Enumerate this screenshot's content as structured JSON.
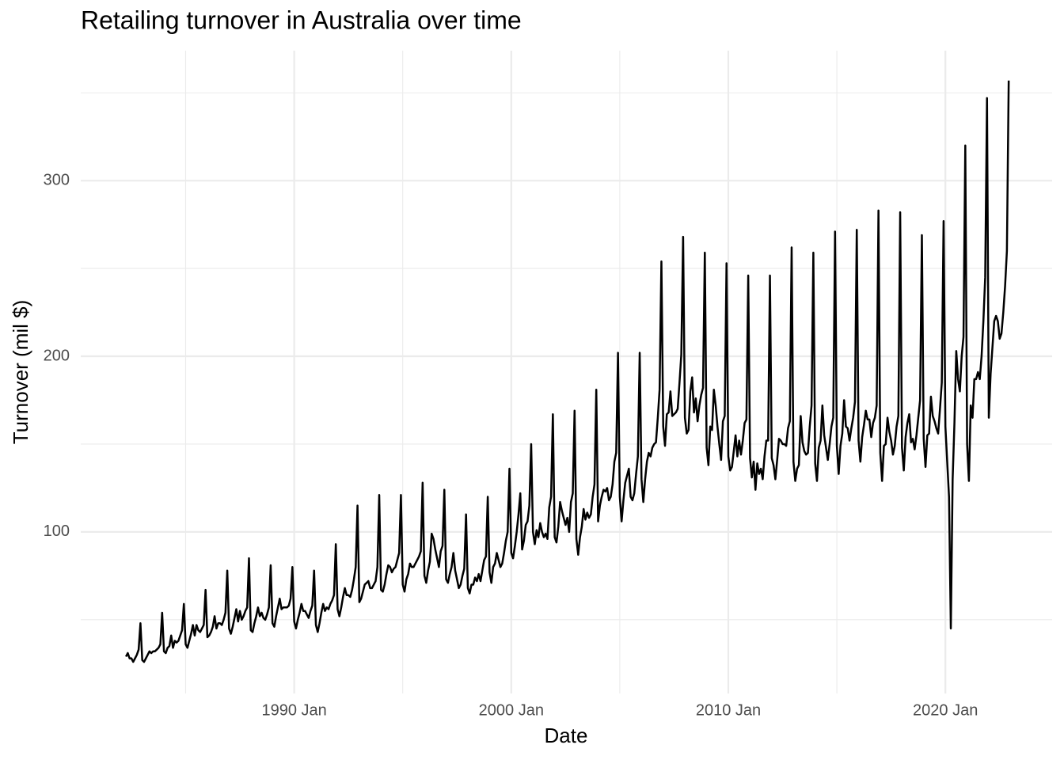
{
  "chart_data": {
    "type": "line",
    "title": "Retailing turnover in Australia over time",
    "x_label": "Date",
    "y_label": "Turnover (mil $)",
    "color": "#000000",
    "grid": true,
    "xlim": [
      "1980 Mar",
      "2024 Dec"
    ],
    "xticks": [
      "1990 Jan",
      "2000 Jan",
      "2010 Jan",
      "2020 Jan"
    ],
    "ylim": [
      8,
      374
    ],
    "yticks": [
      100,
      200,
      300
    ],
    "x": [
      "1982 Apr",
      "1982 May",
      "1982 Jun",
      "1982 Jul",
      "1982 Aug",
      "1982 Sep",
      "1982 Oct",
      "1982 Nov",
      "1982 Dec",
      "1983 Jan",
      "1983 Feb",
      "1983 Mar",
      "1983 Apr",
      "1983 May",
      "1983 Jun",
      "1983 Jul",
      "1983 Aug",
      "1983 Sep",
      "1983 Oct",
      "1983 Nov",
      "1983 Dec",
      "1984 Jan",
      "1984 Feb",
      "1984 Mar",
      "1984 Apr",
      "1984 May",
      "1984 Jun",
      "1984 Jul",
      "1984 Aug",
      "1984 Sep",
      "1984 Oct",
      "1984 Nov",
      "1984 Dec",
      "1985 Jan",
      "1985 Feb",
      "1985 Mar",
      "1985 Apr",
      "1985 May",
      "1985 Jun",
      "1985 Jul",
      "1985 Aug",
      "1985 Sep",
      "1985 Oct",
      "1985 Nov",
      "1985 Dec",
      "1986 Jan",
      "1986 Feb",
      "1986 Mar",
      "1986 Apr",
      "1986 May",
      "1986 Jun",
      "1986 Jul",
      "1986 Aug",
      "1986 Sep",
      "1986 Oct",
      "1986 Nov",
      "1986 Dec",
      "1987 Jan",
      "1987 Feb",
      "1987 Mar",
      "1987 Apr",
      "1987 May",
      "1987 Jun",
      "1987 Jul",
      "1987 Aug",
      "1987 Sep",
      "1987 Oct",
      "1987 Nov",
      "1987 Dec",
      "1988 Jan",
      "1988 Feb",
      "1988 Mar",
      "1988 Apr",
      "1988 May",
      "1988 Jun",
      "1988 Jul",
      "1988 Aug",
      "1988 Sep",
      "1988 Oct",
      "1988 Nov",
      "1988 Dec",
      "1989 Jan",
      "1989 Feb",
      "1989 Mar",
      "1989 Apr",
      "1989 May",
      "1989 Jun",
      "1989 Jul",
      "1989 Aug",
      "1989 Sep",
      "1989 Oct",
      "1989 Nov",
      "1989 Dec",
      "1990 Jan",
      "1990 Feb",
      "1990 Mar",
      "1990 Apr",
      "1990 May",
      "1990 Jun",
      "1990 Jul",
      "1990 Aug",
      "1990 Sep",
      "1990 Oct",
      "1990 Nov",
      "1990 Dec",
      "1991 Jan",
      "1991 Feb",
      "1991 Mar",
      "1991 Apr",
      "1991 May",
      "1991 Jun",
      "1991 Jul",
      "1991 Aug",
      "1991 Sep",
      "1991 Oct",
      "1991 Nov",
      "1991 Dec",
      "1992 Jan",
      "1992 Feb",
      "1992 Mar",
      "1992 Apr",
      "1992 May",
      "1992 Jun",
      "1992 Jul",
      "1992 Aug",
      "1992 Sep",
      "1992 Oct",
      "1992 Nov",
      "1992 Dec",
      "1993 Jan",
      "1993 Feb",
      "1993 Mar",
      "1993 Apr",
      "1993 May",
      "1993 Jun",
      "1993 Jul",
      "1993 Aug",
      "1993 Sep",
      "1993 Oct",
      "1993 Nov",
      "1993 Dec",
      "1994 Jan",
      "1994 Feb",
      "1994 Mar",
      "1994 Apr",
      "1994 May",
      "1994 Jun",
      "1994 Jul",
      "1994 Aug",
      "1994 Sep",
      "1994 Oct",
      "1994 Nov",
      "1994 Dec",
      "1995 Jan",
      "1995 Feb",
      "1995 Mar",
      "1995 Apr",
      "1995 May",
      "1995 Jun",
      "1995 Jul",
      "1995 Aug",
      "1995 Sep",
      "1995 Oct",
      "1995 Nov",
      "1995 Dec",
      "1996 Jan",
      "1996 Feb",
      "1996 Mar",
      "1996 Apr",
      "1996 May",
      "1996 Jun",
      "1996 Jul",
      "1996 Aug",
      "1996 Sep",
      "1996 Oct",
      "1996 Nov",
      "1996 Dec",
      "1997 Jan",
      "1997 Feb",
      "1997 Mar",
      "1997 Apr",
      "1997 May",
      "1997 Jun",
      "1997 Jul",
      "1997 Aug",
      "1997 Sep",
      "1997 Oct",
      "1997 Nov",
      "1997 Dec",
      "1998 Jan",
      "1998 Feb",
      "1998 Mar",
      "1998 Apr",
      "1998 May",
      "1998 Jun",
      "1998 Jul",
      "1998 Aug",
      "1998 Sep",
      "1998 Oct",
      "1998 Nov",
      "1998 Dec",
      "1999 Jan",
      "1999 Feb",
      "1999 Mar",
      "1999 Apr",
      "1999 May",
      "1999 Jun",
      "1999 Jul",
      "1999 Aug",
      "1999 Sep",
      "1999 Oct",
      "1999 Nov",
      "1999 Dec",
      "2000 Jan",
      "2000 Feb",
      "2000 Mar",
      "2000 Apr",
      "2000 May",
      "2000 Jun",
      "2000 Jul",
      "2000 Aug",
      "2000 Sep",
      "2000 Oct",
      "2000 Nov",
      "2000 Dec",
      "2001 Jan",
      "2001 Feb",
      "2001 Mar",
      "2001 Apr",
      "2001 May",
      "2001 Jun",
      "2001 Jul",
      "2001 Aug",
      "2001 Sep",
      "2001 Oct",
      "2001 Nov",
      "2001 Dec",
      "2002 Jan",
      "2002 Feb",
      "2002 Mar",
      "2002 Apr",
      "2002 May",
      "2002 Jun",
      "2002 Jul",
      "2002 Aug",
      "2002 Sep",
      "2002 Oct",
      "2002 Nov",
      "2002 Dec",
      "2003 Jan",
      "2003 Feb",
      "2003 Mar",
      "2003 Apr",
      "2003 May",
      "2003 Jun",
      "2003 Jul",
      "2003 Aug",
      "2003 Sep",
      "2003 Oct",
      "2003 Nov",
      "2003 Dec",
      "2004 Jan",
      "2004 Feb",
      "2004 Mar",
      "2004 Apr",
      "2004 May",
      "2004 Jun",
      "2004 Jul",
      "2004 Aug",
      "2004 Sep",
      "2004 Oct",
      "2004 Nov",
      "2004 Dec",
      "2005 Jan",
      "2005 Feb",
      "2005 Mar",
      "2005 Apr",
      "2005 May",
      "2005 Jun",
      "2005 Jul",
      "2005 Aug",
      "2005 Sep",
      "2005 Oct",
      "2005 Nov",
      "2005 Dec",
      "2006 Jan",
      "2006 Feb",
      "2006 Mar",
      "2006 Apr",
      "2006 May",
      "2006 Jun",
      "2006 Jul",
      "2006 Aug",
      "2006 Sep",
      "2006 Oct",
      "2006 Nov",
      "2006 Dec",
      "2007 Jan",
      "2007 Feb",
      "2007 Mar",
      "2007 Apr",
      "2007 May",
      "2007 Jun",
      "2007 Jul",
      "2007 Aug",
      "2007 Sep",
      "2007 Oct",
      "2007 Nov",
      "2007 Dec",
      "2008 Jan",
      "2008 Feb",
      "2008 Mar",
      "2008 Apr",
      "2008 May",
      "2008 Jun",
      "2008 Jul",
      "2008 Aug",
      "2008 Sep",
      "2008 Oct",
      "2008 Nov",
      "2008 Dec",
      "2009 Jan",
      "2009 Feb",
      "2009 Mar",
      "2009 Apr",
      "2009 May",
      "2009 Jun",
      "2009 Jul",
      "2009 Aug",
      "2009 Sep",
      "2009 Oct",
      "2009 Nov",
      "2009 Dec",
      "2010 Jan",
      "2010 Feb",
      "2010 Mar",
      "2010 Apr",
      "2010 May",
      "2010 Jun",
      "2010 Jul",
      "2010 Aug",
      "2010 Sep",
      "2010 Oct",
      "2010 Nov",
      "2010 Dec",
      "2011 Jan",
      "2011 Feb",
      "2011 Mar",
      "2011 Apr",
      "2011 May",
      "2011 Jun",
      "2011 Jul",
      "2011 Aug",
      "2011 Sep",
      "2011 Oct",
      "2011 Nov",
      "2011 Dec",
      "2012 Jan",
      "2012 Feb",
      "2012 Mar",
      "2012 Apr",
      "2012 May",
      "2012 Jun",
      "2012 Jul",
      "2012 Aug",
      "2012 Sep",
      "2012 Oct",
      "2012 Nov",
      "2012 Dec",
      "2013 Jan",
      "2013 Feb",
      "2013 Mar",
      "2013 Apr",
      "2013 May",
      "2013 Jun",
      "2013 Jul",
      "2013 Aug",
      "2013 Sep",
      "2013 Oct",
      "2013 Nov",
      "2013 Dec",
      "2014 Jan",
      "2014 Feb",
      "2014 Mar",
      "2014 Apr",
      "2014 May",
      "2014 Jun",
      "2014 Jul",
      "2014 Aug",
      "2014 Sep",
      "2014 Oct",
      "2014 Nov",
      "2014 Dec",
      "2015 Jan",
      "2015 Feb",
      "2015 Mar",
      "2015 Apr",
      "2015 May",
      "2015 Jun",
      "2015 Jul",
      "2015 Aug",
      "2015 Sep",
      "2015 Oct",
      "2015 Nov",
      "2015 Dec",
      "2016 Jan",
      "2016 Feb",
      "2016 Mar",
      "2016 Apr",
      "2016 May",
      "2016 Jun",
      "2016 Jul",
      "2016 Aug",
      "2016 Sep",
      "2016 Oct",
      "2016 Nov",
      "2016 Dec",
      "2017 Jan",
      "2017 Feb",
      "2017 Mar",
      "2017 Apr",
      "2017 May",
      "2017 Jun",
      "2017 Jul",
      "2017 Aug",
      "2017 Sep",
      "2017 Oct",
      "2017 Nov",
      "2017 Dec",
      "2018 Jan",
      "2018 Feb",
      "2018 Mar",
      "2018 Apr",
      "2018 May",
      "2018 Jun",
      "2018 Jul",
      "2018 Aug",
      "2018 Sep",
      "2018 Oct",
      "2018 Nov",
      "2018 Dec",
      "2019 Jan",
      "2019 Feb",
      "2019 Mar",
      "2019 Apr",
      "2019 May",
      "2019 Jun",
      "2019 Jul",
      "2019 Aug",
      "2019 Sep",
      "2019 Oct",
      "2019 Nov",
      "2019 Dec",
      "2020 Jan",
      "2020 Feb",
      "2020 Mar",
      "2020 Apr",
      "2020 May",
      "2020 Jun",
      "2020 Jul",
      "2020 Aug",
      "2020 Sep",
      "2020 Oct",
      "2020 Nov",
      "2020 Dec",
      "2021 Jan",
      "2021 Feb",
      "2021 Mar",
      "2021 Apr",
      "2021 May",
      "2021 Jun",
      "2021 Jul",
      "2021 Aug",
      "2021 Sep",
      "2021 Oct",
      "2021 Nov",
      "2021 Dec",
      "2022 Jan",
      "2022 Feb",
      "2022 Mar",
      "2022 Apr",
      "2022 May",
      "2022 Jun",
      "2022 Jul",
      "2022 Aug",
      "2022 Sep",
      "2022 Oct",
      "2022 Nov",
      "2022 Dec"
    ],
    "values": [
      29,
      31,
      28,
      28,
      26,
      28,
      30,
      33,
      48,
      27,
      26,
      28,
      30,
      32,
      31,
      32,
      32,
      33,
      34,
      36,
      54,
      32,
      31,
      34,
      35,
      41,
      34,
      38,
      37,
      38,
      41,
      44,
      59,
      36,
      34,
      38,
      42,
      47,
      41,
      47,
      44,
      43,
      45,
      47,
      67,
      40,
      41,
      43,
      46,
      52,
      45,
      48,
      48,
      47,
      50,
      54,
      78,
      45,
      42,
      46,
      51,
      56,
      49,
      55,
      50,
      52,
      55,
      57,
      85,
      44,
      43,
      48,
      52,
      57,
      52,
      54,
      51,
      50,
      53,
      57,
      81,
      48,
      46,
      52,
      57,
      62,
      56,
      57,
      57,
      57,
      58,
      62,
      80,
      49,
      45,
      50,
      54,
      59,
      55,
      55,
      53,
      51,
      55,
      58,
      78,
      47,
      43,
      48,
      54,
      59,
      55,
      57,
      56,
      59,
      61,
      64,
      93,
      56,
      52,
      57,
      63,
      68,
      64,
      64,
      63,
      67,
      73,
      80,
      115,
      60,
      62,
      66,
      70,
      71,
      72,
      68,
      68,
      70,
      72,
      80,
      121,
      67,
      66,
      70,
      76,
      81,
      80,
      77,
      79,
      80,
      84,
      88,
      121,
      70,
      66,
      73,
      76,
      82,
      80,
      80,
      82,
      84,
      86,
      89,
      128,
      75,
      71,
      78,
      83,
      99,
      96,
      90,
      85,
      80,
      89,
      92,
      124,
      73,
      71,
      76,
      80,
      88,
      78,
      73,
      68,
      70,
      75,
      79,
      110,
      68,
      65,
      70,
      70,
      74,
      72,
      76,
      72,
      78,
      84,
      86,
      120,
      77,
      71,
      80,
      82,
      88,
      84,
      80,
      82,
      88,
      95,
      100,
      136,
      88,
      85,
      92,
      100,
      110,
      122,
      90,
      95,
      104,
      106,
      115,
      150,
      100,
      93,
      101,
      97,
      105,
      100,
      97,
      99,
      96,
      114,
      120,
      167,
      97,
      94,
      103,
      117,
      112,
      108,
      104,
      108,
      100,
      117,
      122,
      169,
      96,
      87,
      97,
      103,
      113,
      107,
      111,
      108,
      110,
      120,
      127,
      181,
      106,
      115,
      120,
      124,
      123,
      125,
      118,
      120,
      127,
      140,
      145,
      202,
      120,
      106,
      118,
      128,
      132,
      136,
      120,
      118,
      122,
      133,
      143,
      202,
      130,
      117,
      130,
      140,
      145,
      143,
      148,
      150,
      151,
      165,
      181,
      254,
      160,
      149,
      167,
      168,
      180,
      166,
      167,
      168,
      170,
      185,
      201,
      268,
      165,
      156,
      158,
      180,
      188,
      168,
      176,
      163,
      172,
      178,
      182,
      259,
      148,
      138,
      160,
      158,
      181,
      172,
      160,
      150,
      141,
      163,
      166,
      253,
      143,
      135,
      137,
      146,
      155,
      143,
      152,
      144,
      152,
      162,
      164,
      246,
      142,
      131,
      140,
      124,
      139,
      133,
      136,
      130,
      143,
      152,
      152,
      246,
      142,
      138,
      130,
      141,
      153,
      152,
      150,
      150,
      149,
      159,
      163,
      262,
      140,
      129,
      136,
      138,
      166,
      151,
      146,
      144,
      145,
      160,
      172,
      259,
      139,
      129,
      148,
      152,
      172,
      155,
      148,
      141,
      150,
      160,
      165,
      271,
      149,
      133,
      149,
      156,
      175,
      160,
      159,
      152,
      159,
      165,
      174,
      272,
      152,
      140,
      154,
      161,
      169,
      164,
      164,
      154,
      162,
      165,
      172,
      283,
      145,
      129,
      149,
      150,
      165,
      157,
      152,
      144,
      149,
      160,
      166,
      282,
      148,
      135,
      154,
      162,
      167,
      151,
      153,
      147,
      155,
      165,
      175,
      269,
      153,
      137,
      155,
      156,
      177,
      166,
      163,
      159,
      156,
      170,
      185,
      277,
      160,
      140,
      120,
      45,
      130,
      162,
      203,
      187,
      180,
      200,
      211,
      320,
      150,
      129,
      172,
      165,
      187,
      187,
      191,
      187,
      200,
      220,
      245,
      347,
      165,
      190,
      205,
      220,
      223,
      220,
      210,
      213,
      225,
      240,
      260,
      357
    ]
  }
}
